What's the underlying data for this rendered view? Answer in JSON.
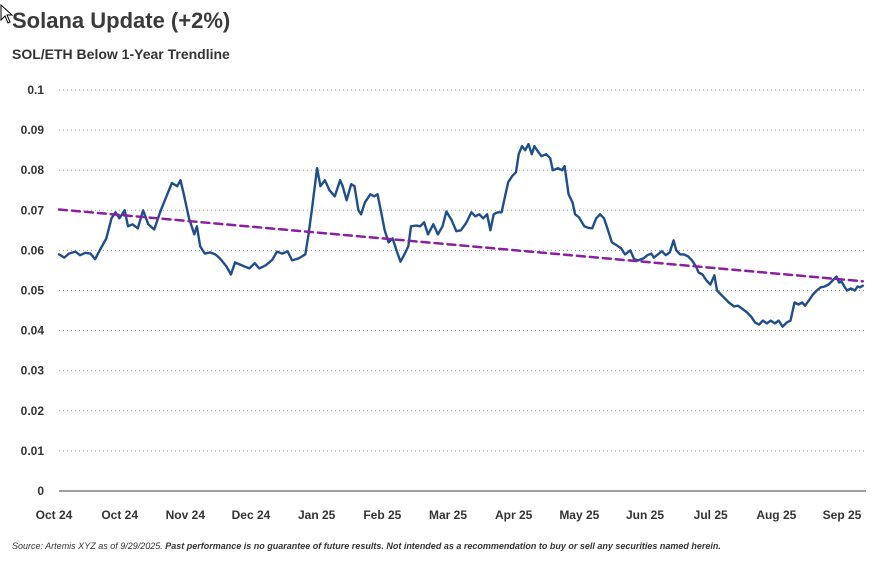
{
  "header": {
    "title": "Solana Update (+2%)",
    "subtitle": "SOL/ETH Below 1-Year Trendline"
  },
  "footer": {
    "source": "Source: Artemis XYZ as of 9/29/2025.",
    "disclaimer": "Past performance is no guarantee of future results. Not intended as a recommendation to buy or sell any securities named herein."
  },
  "chart_data": {
    "type": "line",
    "title": "SOL/ETH Below 1-Year Trendline",
    "xlabel": "",
    "ylabel": "",
    "ylim": [
      0,
      0.1
    ],
    "yticks": [
      "0",
      "0.01",
      "0.02",
      "0.03",
      "0.04",
      "0.05",
      "0.06",
      "0.07",
      "0.08",
      "0.09",
      "0.1"
    ],
    "grid": "horizontal-dotted",
    "xrange_months": [
      0,
      12
    ],
    "xticks": [
      {
        "label": "Oct 24",
        "m": 0
      },
      {
        "label": "Oct 24",
        "m": 1
      },
      {
        "label": "Nov 24",
        "m": 2
      },
      {
        "label": "Dec 24",
        "m": 3
      },
      {
        "label": "Jan 25",
        "m": 4
      },
      {
        "label": "Feb 25",
        "m": 5
      },
      {
        "label": "Mar 25",
        "m": 6
      },
      {
        "label": "Apr 25",
        "m": 7
      },
      {
        "label": "May 25",
        "m": 8
      },
      {
        "label": "Jun 25",
        "m": 9
      },
      {
        "label": "Jul 25",
        "m": 10
      },
      {
        "label": "Aug 25",
        "m": 11
      },
      {
        "label": "Sep 25",
        "m": 12
      }
    ],
    "series": [
      {
        "name": "SOL/ETH",
        "color": "#1f4e8c",
        "style": "solid",
        "points": [
          [
            0.0,
            0.059
          ],
          [
            0.08,
            0.0582
          ],
          [
            0.15,
            0.0592
          ],
          [
            0.25,
            0.0597
          ],
          [
            0.32,
            0.0588
          ],
          [
            0.4,
            0.0594
          ],
          [
            0.48,
            0.0592
          ],
          [
            0.55,
            0.0578
          ],
          [
            0.62,
            0.06
          ],
          [
            0.72,
            0.063
          ],
          [
            0.8,
            0.068
          ],
          [
            0.86,
            0.0695
          ],
          [
            0.92,
            0.068
          ],
          [
            1.0,
            0.07
          ],
          [
            1.05,
            0.066
          ],
          [
            1.12,
            0.0665
          ],
          [
            1.2,
            0.0655
          ],
          [
            1.28,
            0.07
          ],
          [
            1.36,
            0.0665
          ],
          [
            1.45,
            0.0652
          ],
          [
            1.55,
            0.07
          ],
          [
            1.65,
            0.074
          ],
          [
            1.72,
            0.0768
          ],
          [
            1.8,
            0.076
          ],
          [
            1.85,
            0.0775
          ],
          [
            1.9,
            0.074
          ],
          [
            1.98,
            0.068
          ],
          [
            2.06,
            0.064
          ],
          [
            2.1,
            0.066
          ],
          [
            2.15,
            0.061
          ],
          [
            2.22,
            0.0592
          ],
          [
            2.3,
            0.0595
          ],
          [
            2.38,
            0.059
          ],
          [
            2.45,
            0.058
          ],
          [
            2.55,
            0.056
          ],
          [
            2.62,
            0.054
          ],
          [
            2.68,
            0.057
          ],
          [
            2.75,
            0.0565
          ],
          [
            2.82,
            0.056
          ],
          [
            2.9,
            0.0555
          ],
          [
            2.98,
            0.0568
          ],
          [
            3.05,
            0.0555
          ],
          [
            3.15,
            0.0563
          ],
          [
            3.25,
            0.0577
          ],
          [
            3.32,
            0.0597
          ],
          [
            3.4,
            0.0592
          ],
          [
            3.48,
            0.0598
          ],
          [
            3.55,
            0.0575
          ],
          [
            3.65,
            0.058
          ],
          [
            3.75,
            0.059
          ],
          [
            3.8,
            0.064
          ],
          [
            3.85,
            0.07
          ],
          [
            3.88,
            0.074
          ],
          [
            3.93,
            0.0805
          ],
          [
            3.98,
            0.076
          ],
          [
            4.05,
            0.0775
          ],
          [
            4.12,
            0.075
          ],
          [
            4.2,
            0.0735
          ],
          [
            4.28,
            0.0775
          ],
          [
            4.32,
            0.076
          ],
          [
            4.38,
            0.0725
          ],
          [
            4.45,
            0.0765
          ],
          [
            4.5,
            0.076
          ],
          [
            4.56,
            0.07
          ],
          [
            4.6,
            0.069
          ],
          [
            4.66,
            0.072
          ],
          [
            4.74,
            0.074
          ],
          [
            4.8,
            0.0735
          ],
          [
            4.85,
            0.074
          ],
          [
            4.9,
            0.07
          ],
          [
            4.96,
            0.065
          ],
          [
            5.02,
            0.062
          ],
          [
            5.08,
            0.063
          ],
          [
            5.14,
            0.06
          ],
          [
            5.2,
            0.0572
          ],
          [
            5.26,
            0.059
          ],
          [
            5.32,
            0.061
          ],
          [
            5.36,
            0.066
          ],
          [
            5.44,
            0.0662
          ],
          [
            5.5,
            0.066
          ],
          [
            5.56,
            0.067
          ],
          [
            5.62,
            0.064
          ],
          [
            5.7,
            0.0665
          ],
          [
            5.77,
            0.064
          ],
          [
            5.84,
            0.066
          ],
          [
            5.9,
            0.0697
          ],
          [
            5.98,
            0.0675
          ],
          [
            6.05,
            0.0648
          ],
          [
            6.12,
            0.065
          ],
          [
            6.2,
            0.0668
          ],
          [
            6.28,
            0.0695
          ],
          [
            6.34,
            0.0685
          ],
          [
            6.4,
            0.069
          ],
          [
            6.46,
            0.068
          ],
          [
            6.52,
            0.069
          ],
          [
            6.57,
            0.065
          ],
          [
            6.62,
            0.069
          ],
          [
            6.68,
            0.0695
          ],
          [
            6.74,
            0.0695
          ],
          [
            6.8,
            0.074
          ],
          [
            6.84,
            0.077
          ],
          [
            6.9,
            0.0785
          ],
          [
            6.96,
            0.0795
          ],
          [
            7.0,
            0.084
          ],
          [
            7.05,
            0.086
          ],
          [
            7.1,
            0.085
          ],
          [
            7.15,
            0.0865
          ],
          [
            7.2,
            0.084
          ],
          [
            7.24,
            0.086
          ],
          [
            7.3,
            0.0845
          ],
          [
            7.35,
            0.0835
          ],
          [
            7.42,
            0.084
          ],
          [
            7.48,
            0.083
          ],
          [
            7.52,
            0.08
          ],
          [
            7.6,
            0.0805
          ],
          [
            7.66,
            0.08
          ],
          [
            7.7,
            0.081
          ],
          [
            7.76,
            0.074
          ],
          [
            7.82,
            0.072
          ],
          [
            7.86,
            0.069
          ],
          [
            7.92,
            0.0682
          ],
          [
            8.0,
            0.066
          ],
          [
            8.06,
            0.0656
          ],
          [
            8.12,
            0.0655
          ],
          [
            8.18,
            0.068
          ],
          [
            8.24,
            0.069
          ],
          [
            8.3,
            0.068
          ],
          [
            8.36,
            0.065
          ],
          [
            8.42,
            0.062
          ],
          [
            8.5,
            0.0612
          ],
          [
            8.56,
            0.0605
          ],
          [
            8.62,
            0.059
          ],
          [
            8.7,
            0.06
          ],
          [
            8.76,
            0.0578
          ],
          [
            8.82,
            0.0575
          ],
          [
            8.9,
            0.058
          ],
          [
            8.96,
            0.0588
          ],
          [
            9.02,
            0.0592
          ],
          [
            9.06,
            0.0582
          ],
          [
            9.12,
            0.059
          ],
          [
            9.18,
            0.0598
          ],
          [
            9.24,
            0.0588
          ],
          [
            9.3,
            0.0595
          ],
          [
            9.36,
            0.0625
          ],
          [
            9.4,
            0.06
          ],
          [
            9.46,
            0.059
          ],
          [
            9.52,
            0.059
          ],
          [
            9.58,
            0.0585
          ],
          [
            9.64,
            0.0575
          ],
          [
            9.7,
            0.056
          ],
          [
            9.74,
            0.0545
          ],
          [
            9.8,
            0.054
          ],
          [
            9.86,
            0.0525
          ],
          [
            9.92,
            0.0515
          ],
          [
            9.98,
            0.0538
          ],
          [
            10.02,
            0.05
          ],
          [
            10.08,
            0.049
          ],
          [
            10.14,
            0.048
          ],
          [
            10.2,
            0.047
          ],
          [
            10.28,
            0.046
          ],
          [
            10.34,
            0.0462
          ],
          [
            10.4,
            0.0455
          ],
          [
            10.48,
            0.0445
          ],
          [
            10.54,
            0.0435
          ],
          [
            10.6,
            0.042
          ],
          [
            10.66,
            0.0415
          ],
          [
            10.72,
            0.0425
          ],
          [
            10.78,
            0.0418
          ],
          [
            10.84,
            0.0425
          ],
          [
            10.9,
            0.0418
          ],
          [
            10.96,
            0.0425
          ],
          [
            11.02,
            0.041
          ],
          [
            11.08,
            0.042
          ],
          [
            11.14,
            0.0425
          ],
          [
            11.2,
            0.047
          ],
          [
            11.26,
            0.0465
          ],
          [
            11.32,
            0.047
          ],
          [
            11.36,
            0.0462
          ],
          [
            11.42,
            0.0475
          ],
          [
            11.48,
            0.049
          ],
          [
            11.54,
            0.05
          ],
          [
            11.6,
            0.0508
          ],
          [
            11.66,
            0.051
          ],
          [
            11.72,
            0.0515
          ],
          [
            11.78,
            0.0525
          ],
          [
            11.84,
            0.0535
          ],
          [
            11.88,
            0.052
          ],
          [
            11.92,
            0.0522
          ],
          [
            11.96,
            0.051
          ],
          [
            12.0,
            0.05
          ],
          [
            12.06,
            0.0505
          ],
          [
            12.12,
            0.05
          ],
          [
            12.16,
            0.051
          ],
          [
            12.2,
            0.0508
          ],
          [
            12.24,
            0.0512
          ]
        ]
      },
      {
        "name": "1-Year Trendline",
        "color": "#8b1fa0",
        "style": "dashed",
        "points": [
          [
            0.0,
            0.0702
          ],
          [
            12.24,
            0.0523
          ]
        ]
      }
    ]
  }
}
